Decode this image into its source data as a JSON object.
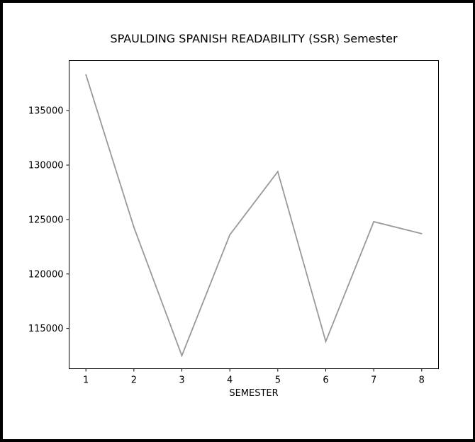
{
  "chart_data": {
    "type": "line",
    "title": "SPAULDING SPANISH READABILITY (SSR) Semester",
    "xlabel": "SEMESTER",
    "ylabel": "",
    "x": [
      1,
      2,
      3,
      4,
      5,
      6,
      7,
      8
    ],
    "series": [
      {
        "values": [
          138300,
          124300,
          112500,
          123600,
          129400,
          113800,
          124800,
          123700
        ]
      }
    ],
    "xticks": [
      "1",
      "2",
      "3",
      "4",
      "5",
      "6",
      "7",
      "8"
    ],
    "yticks": [
      115000,
      120000,
      125000,
      130000,
      135000
    ],
    "ytick_labels": [
      "115000",
      "120000",
      "125000",
      "130000",
      "135000"
    ],
    "xlim": [
      0.65,
      8.35
    ],
    "ylim": [
      111300,
      139600
    ],
    "grid": false,
    "line_color": "#999999"
  }
}
